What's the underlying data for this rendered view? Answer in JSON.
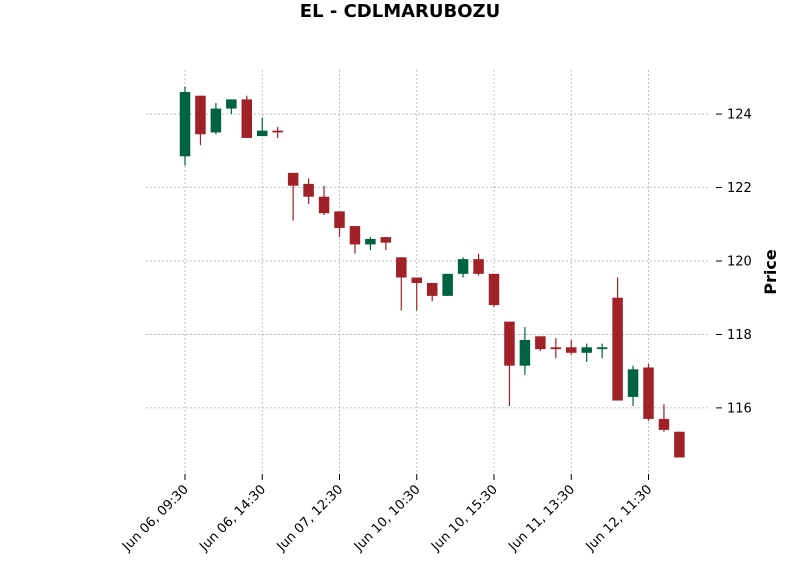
{
  "chart_data": {
    "type": "candlestick",
    "title": "EL - CDLMARUBOZU",
    "ylabel": "Price",
    "ylim": [
      114.2,
      125.2
    ],
    "y_ticks": [
      "116",
      "118",
      "120",
      "122",
      "124"
    ],
    "x_ticks": [
      {
        "index": 0,
        "label": "Jun 06, 09:30"
      },
      {
        "index": 5,
        "label": "Jun 06, 14:30"
      },
      {
        "index": 10,
        "label": "Jun 07, 12:30"
      },
      {
        "index": 15,
        "label": "Jun 10, 10:30"
      },
      {
        "index": 20,
        "label": "Jun 10, 15:30"
      },
      {
        "index": 25,
        "label": "Jun 11, 13:30"
      },
      {
        "index": 30,
        "label": "Jun 12, 11:30"
      }
    ],
    "grid": true,
    "up_color": "#006340",
    "down_color": "#a02128",
    "candles": [
      {
        "o": 122.85,
        "h": 124.75,
        "l": 122.6,
        "c": 124.6
      },
      {
        "o": 124.5,
        "h": 124.5,
        "l": 123.15,
        "c": 123.45
      },
      {
        "o": 123.5,
        "h": 124.3,
        "l": 123.45,
        "c": 124.15
      },
      {
        "o": 124.15,
        "h": 124.4,
        "l": 124.0,
        "c": 124.4
      },
      {
        "o": 124.4,
        "h": 124.5,
        "l": 123.35,
        "c": 123.35
      },
      {
        "o": 123.4,
        "h": 123.9,
        "l": 123.4,
        "c": 123.55
      },
      {
        "o": 123.55,
        "h": 123.65,
        "l": 123.35,
        "c": 123.5
      },
      {
        "o": 122.4,
        "h": 122.4,
        "l": 121.1,
        "c": 122.05
      },
      {
        "o": 122.1,
        "h": 122.25,
        "l": 121.55,
        "c": 121.75
      },
      {
        "o": 121.75,
        "h": 122.05,
        "l": 121.25,
        "c": 121.3
      },
      {
        "o": 121.35,
        "h": 121.35,
        "l": 120.65,
        "c": 120.9
      },
      {
        "o": 120.95,
        "h": 120.95,
        "l": 120.2,
        "c": 120.45
      },
      {
        "o": 120.45,
        "h": 120.65,
        "l": 120.3,
        "c": 120.6
      },
      {
        "o": 120.65,
        "h": 120.65,
        "l": 120.3,
        "c": 120.5
      },
      {
        "o": 120.1,
        "h": 120.1,
        "l": 118.65,
        "c": 119.55
      },
      {
        "o": 119.55,
        "h": 119.55,
        "l": 118.65,
        "c": 119.4
      },
      {
        "o": 119.4,
        "h": 119.4,
        "l": 118.9,
        "c": 119.05
      },
      {
        "o": 119.05,
        "h": 119.65,
        "l": 119.05,
        "c": 119.65
      },
      {
        "o": 119.65,
        "h": 120.1,
        "l": 119.55,
        "c": 120.05
      },
      {
        "o": 120.05,
        "h": 120.2,
        "l": 119.6,
        "c": 119.65
      },
      {
        "o": 119.65,
        "h": 119.65,
        "l": 118.75,
        "c": 118.8
      },
      {
        "o": 118.35,
        "h": 118.35,
        "l": 116.05,
        "c": 117.15
      },
      {
        "o": 117.15,
        "h": 118.2,
        "l": 116.9,
        "c": 117.85
      },
      {
        "o": 117.95,
        "h": 117.95,
        "l": 117.55,
        "c": 117.6
      },
      {
        "o": 117.65,
        "h": 117.9,
        "l": 117.35,
        "c": 117.6
      },
      {
        "o": 117.65,
        "h": 117.85,
        "l": 117.45,
        "c": 117.5
      },
      {
        "o": 117.5,
        "h": 117.75,
        "l": 117.25,
        "c": 117.65
      },
      {
        "o": 117.6,
        "h": 117.75,
        "l": 117.35,
        "c": 117.65
      },
      {
        "o": 119.0,
        "h": 119.55,
        "l": 116.2,
        "c": 116.2
      },
      {
        "o": 116.3,
        "h": 117.15,
        "l": 116.05,
        "c": 117.05
      },
      {
        "o": 117.1,
        "h": 117.2,
        "l": 115.65,
        "c": 115.7
      },
      {
        "o": 115.7,
        "h": 116.1,
        "l": 115.35,
        "c": 115.4
      },
      {
        "o": 115.35,
        "h": 115.35,
        "l": 114.65,
        "c": 114.65
      }
    ]
  }
}
